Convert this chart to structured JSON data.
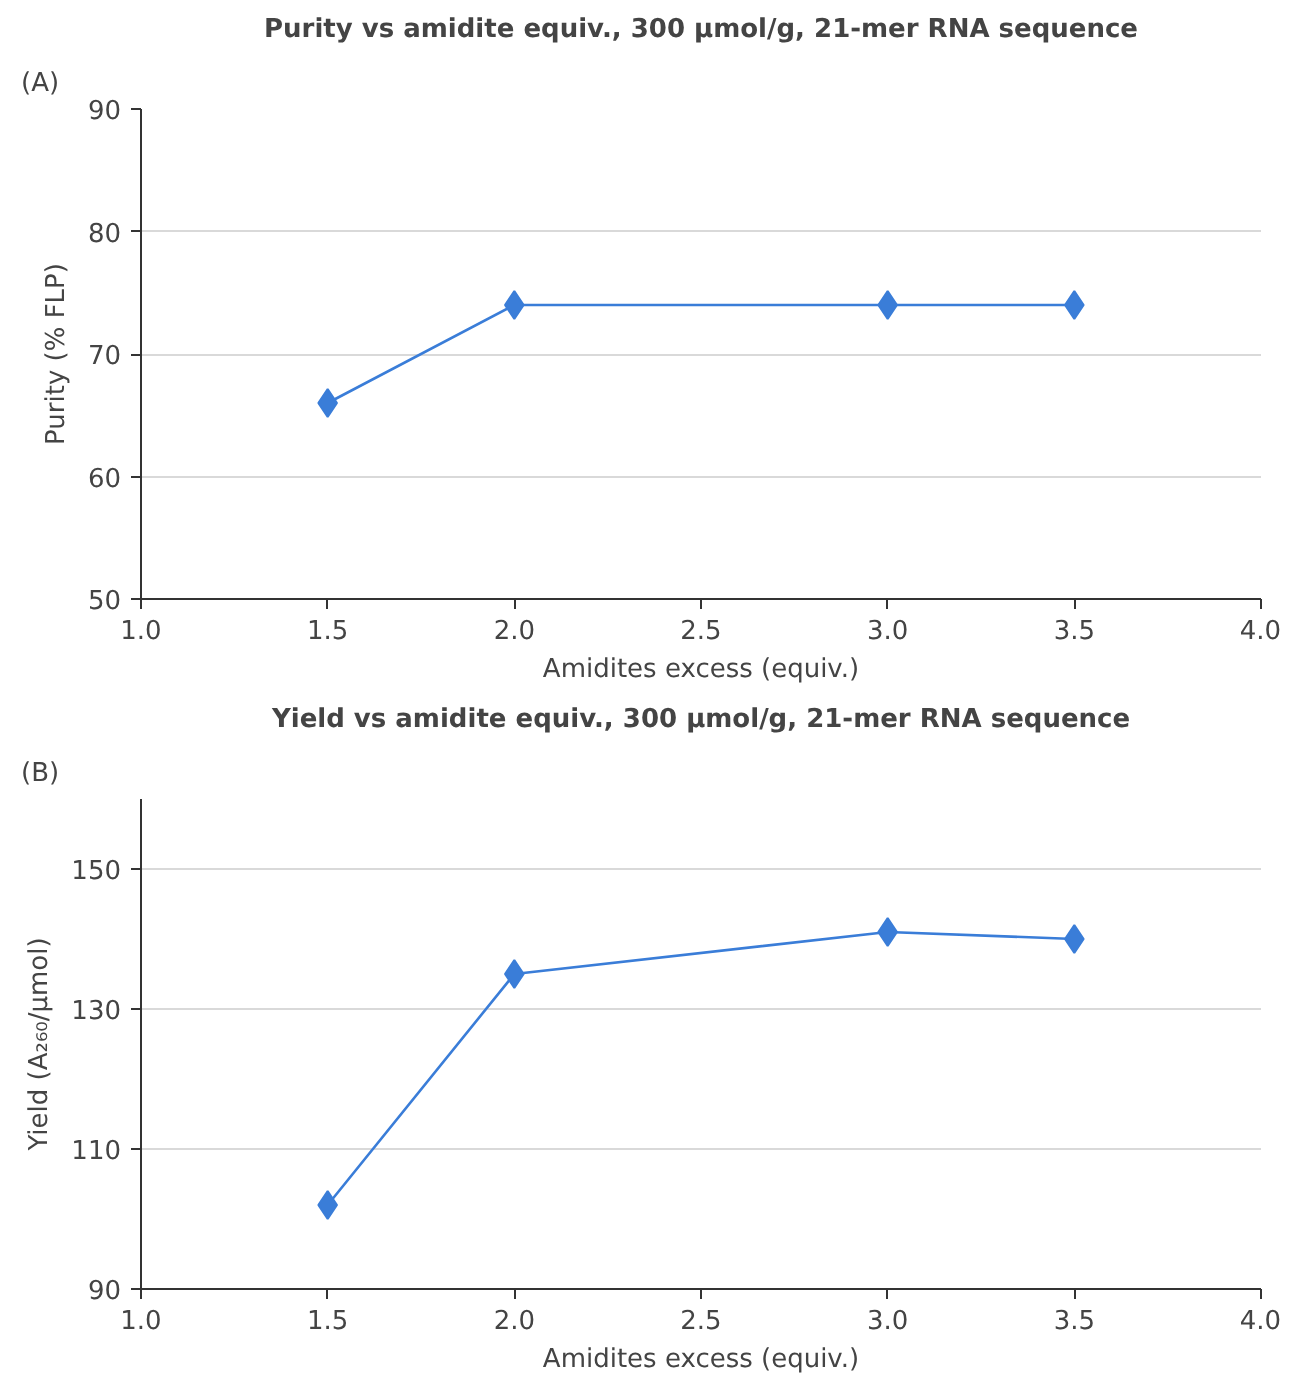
{
  "chart_data": [
    {
      "type": "line",
      "title": "Purity vs amidite equiv., 300 µmol/g, 21-mer RNA sequence",
      "xlabel": "Amidites excess (equiv.)",
      "ylabel": "Purity (% FLP)",
      "annotations": [
        "(A)"
      ],
      "x": [
        1.5,
        2.0,
        3.0,
        3.5
      ],
      "series": [
        {
          "color": "#3a7dd8",
          "values": [
            66,
            74,
            74,
            74
          ]
        }
      ],
      "xlim": [
        1.0,
        4.0
      ],
      "xticks": [
        {
          "value": 1,
          "label": "1.0"
        },
        {
          "value": 1.5,
          "label": "1.5"
        },
        {
          "value": 2,
          "label": "2.0"
        },
        {
          "value": 2.5,
          "label": "2.5"
        },
        {
          "value": 3,
          "label": "3.0"
        },
        {
          "value": 3.5,
          "label": "3.5"
        },
        {
          "value": 4,
          "label": "4.0"
        }
      ],
      "ylim": [
        50,
        90
      ],
      "yticks": [
        50,
        60,
        70,
        80,
        90
      ],
      "grid": "y",
      "marker": "diamond",
      "line_style": "solid"
    },
    {
      "type": "line",
      "title": "Yield vs amidite equiv., 300 µmol/g, 21-mer RNA sequence",
      "xlabel": "Amidites excess (equiv.)",
      "ylabel": "Yield (A₂₆₀/µmol)",
      "annotations": [
        "(B)"
      ],
      "x": [
        1.5,
        2.0,
        3.0,
        3.5
      ],
      "series": [
        {
          "color": "#3a7dd8",
          "values": [
            102,
            135,
            141,
            140
          ]
        }
      ],
      "xlim": [
        1.0,
        4.0
      ],
      "xticks": [
        {
          "value": 1,
          "label": "1.0"
        },
        {
          "value": 1.5,
          "label": "1.5"
        },
        {
          "value": 2,
          "label": "2.0"
        },
        {
          "value": 2.5,
          "label": "2.5"
        },
        {
          "value": 3,
          "label": "3.0"
        },
        {
          "value": 3.5,
          "label": "3.5"
        },
        {
          "value": 4,
          "label": "4.0"
        }
      ],
      "ylim": [
        90,
        160
      ],
      "yticks": [
        90,
        110,
        130,
        150
      ],
      "grid": "y",
      "marker": "diamond",
      "line_style": "solid"
    }
  ]
}
